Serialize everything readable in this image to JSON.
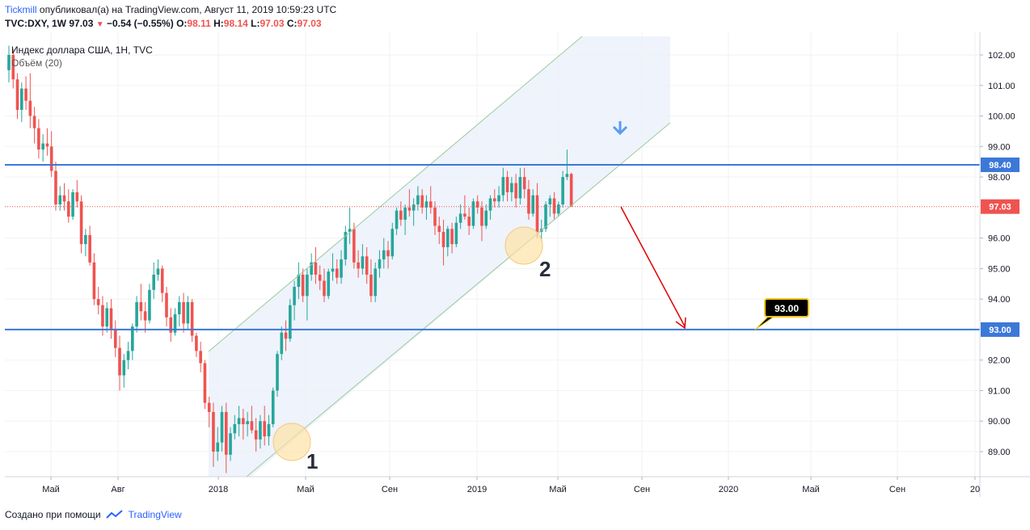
{
  "header": {
    "author": "Tickmill",
    "published": "опубликовал(а) на TradingView.com, Август 11, 2019 10:59:23 UTC",
    "symbol": "TVC:DXY, 1W",
    "last": "97.03",
    "change": "−0.54 (−0.55%)",
    "o_label": "O:",
    "o": "98.11",
    "h_label": "H:",
    "h": "98.14",
    "l_label": "L:",
    "l": "97.03",
    "c_label": "C:",
    "c": "97.03"
  },
  "legend": {
    "title": "Индекс доллара США, 1Н, TVC",
    "volume": "Объём (20)"
  },
  "footer": {
    "created_with": "Создано при помощи",
    "brand": "TradingView"
  },
  "colors": {
    "up": "#26a69a",
    "down": "#ef5350",
    "level_line": "#3c78d8",
    "channel_line": "#9ccc9c",
    "channel_fill": "#eef3fc",
    "arrow": "#e00000",
    "circle": "#ffe0a0",
    "blue_arrow": "#5b9cf0"
  },
  "chart_data": {
    "type": "candlestick",
    "title": "Индекс доллара США, 1Н, TVC",
    "ylim": [
      88.2,
      102.7
    ],
    "y_ticks": [
      {
        "value": 102,
        "label": "102.00"
      },
      {
        "value": 101,
        "label": "101.00"
      },
      {
        "value": 100,
        "label": "100.00"
      },
      {
        "value": 99,
        "label": "99.00"
      },
      {
        "value": 98,
        "label": "98.00"
      },
      {
        "value": 96,
        "label": "96.00"
      },
      {
        "value": 95,
        "label": "95.00"
      },
      {
        "value": 94,
        "label": "94.00"
      },
      {
        "value": 92,
        "label": "92.00"
      },
      {
        "value": 91,
        "label": "91.00"
      },
      {
        "value": 90,
        "label": "90.00"
      },
      {
        "value": 89,
        "label": "89.00"
      }
    ],
    "x_ticks": [
      "Май",
      "Авг",
      "2018",
      "Май",
      "Сен",
      "2019",
      "Май",
      "Сен",
      "2020",
      "Май",
      "Сен",
      "20"
    ],
    "levels": [
      {
        "value": 98.4,
        "label": "98.40"
      },
      {
        "value": 93.0,
        "label": "93.00"
      }
    ],
    "last_price": {
      "value": 97.03,
      "label": "97.03"
    },
    "target_label": "93.00",
    "point_labels": [
      "1",
      "2"
    ],
    "candles": [
      [
        101.5,
        102.3,
        101.1,
        102.0
      ],
      [
        102.0,
        102.2,
        100.9,
        101.2
      ],
      [
        101.2,
        101.4,
        99.9,
        100.2
      ],
      [
        100.2,
        101.1,
        99.8,
        100.9
      ],
      [
        100.9,
        101.3,
        100.2,
        100.5
      ],
      [
        100.5,
        101.4,
        99.6,
        100.0
      ],
      [
        100.0,
        100.3,
        99.1,
        99.6
      ],
      [
        99.6,
        99.9,
        98.6,
        98.9
      ],
      [
        98.9,
        99.4,
        98.5,
        99.1
      ],
      [
        99.1,
        99.6,
        98.7,
        99.0
      ],
      [
        99.0,
        99.5,
        98.0,
        98.2
      ],
      [
        98.2,
        98.5,
        96.9,
        97.1
      ],
      [
        97.1,
        97.7,
        96.9,
        97.4
      ],
      [
        97.4,
        97.8,
        96.9,
        97.2
      ],
      [
        97.2,
        97.6,
        96.5,
        96.7
      ],
      [
        96.7,
        97.6,
        96.6,
        97.5
      ],
      [
        97.5,
        97.9,
        97.0,
        97.2
      ],
      [
        97.2,
        97.4,
        95.5,
        95.8
      ],
      [
        95.8,
        96.3,
        95.4,
        96.1
      ],
      [
        96.1,
        96.4,
        95.1,
        95.2
      ],
      [
        95.2,
        95.5,
        93.8,
        94.0
      ],
      [
        94.0,
        94.4,
        93.5,
        93.8
      ],
      [
        93.8,
        94.1,
        92.8,
        93.1
      ],
      [
        93.1,
        93.9,
        92.9,
        93.7
      ],
      [
        93.7,
        94.0,
        92.7,
        93.0
      ],
      [
        93.0,
        93.3,
        92.1,
        92.4
      ],
      [
        92.4,
        92.8,
        91.0,
        91.5
      ],
      [
        91.5,
        92.2,
        91.1,
        92.0
      ],
      [
        92.0,
        92.6,
        91.7,
        92.3
      ],
      [
        92.3,
        93.2,
        92.0,
        93.1
      ],
      [
        93.1,
        94.1,
        92.9,
        93.9
      ],
      [
        93.9,
        94.5,
        93.3,
        93.6
      ],
      [
        93.6,
        93.9,
        92.9,
        93.3
      ],
      [
        93.3,
        94.5,
        93.2,
        94.3
      ],
      [
        94.3,
        95.2,
        94.0,
        94.8
      ],
      [
        94.8,
        95.3,
        94.6,
        95.0
      ],
      [
        95.0,
        95.1,
        93.9,
        94.2
      ],
      [
        94.2,
        94.4,
        93.1,
        93.4
      ],
      [
        93.4,
        93.7,
        92.6,
        92.9
      ],
      [
        92.9,
        93.7,
        92.8,
        93.5
      ],
      [
        93.5,
        94.1,
        93.1,
        93.9
      ],
      [
        93.9,
        94.2,
        92.9,
        93.2
      ],
      [
        93.2,
        94.1,
        93.0,
        93.9
      ],
      [
        93.9,
        94.0,
        92.6,
        92.8
      ],
      [
        92.8,
        92.9,
        92.1,
        92.3
      ],
      [
        92.3,
        92.6,
        91.6,
        91.9
      ],
      [
        91.9,
        92.0,
        90.4,
        90.6
      ],
      [
        90.6,
        90.8,
        89.8,
        90.3
      ],
      [
        90.3,
        90.6,
        88.5,
        89.0
      ],
      [
        89.0,
        89.8,
        88.7,
        89.3
      ],
      [
        89.3,
        90.5,
        89.0,
        90.3
      ],
      [
        90.3,
        90.6,
        88.3,
        88.9
      ],
      [
        88.9,
        89.8,
        88.7,
        89.6
      ],
      [
        89.6,
        90.2,
        89.4,
        89.9
      ],
      [
        89.9,
        90.5,
        89.5,
        90.1
      ],
      [
        90.1,
        90.4,
        89.4,
        89.9
      ],
      [
        89.9,
        90.3,
        89.5,
        90.0
      ],
      [
        90.0,
        90.5,
        89.6,
        89.7
      ],
      [
        89.7,
        90.1,
        89.0,
        89.4
      ],
      [
        89.4,
        90.2,
        89.1,
        90.0
      ],
      [
        90.0,
        90.5,
        89.2,
        89.5
      ],
      [
        89.5,
        90.2,
        89.2,
        89.9
      ],
      [
        89.9,
        91.1,
        89.8,
        91.0
      ],
      [
        91.0,
        92.3,
        90.8,
        92.2
      ],
      [
        92.2,
        93.1,
        92.0,
        92.9
      ],
      [
        92.9,
        93.3,
        92.3,
        92.7
      ],
      [
        92.7,
        94.0,
        92.6,
        93.8
      ],
      [
        93.8,
        94.6,
        93.3,
        94.4
      ],
      [
        94.4,
        95.2,
        94.0,
        94.8
      ],
      [
        94.8,
        95.0,
        93.9,
        94.1
      ],
      [
        94.1,
        95.0,
        93.3,
        94.8
      ],
      [
        94.8,
        95.5,
        94.6,
        95.2
      ],
      [
        95.2,
        95.7,
        94.5,
        94.8
      ],
      [
        94.8,
        95.1,
        94.3,
        94.6
      ],
      [
        94.6,
        95.0,
        93.9,
        94.1
      ],
      [
        94.1,
        95.0,
        94.0,
        94.9
      ],
      [
        94.9,
        95.5,
        94.6,
        95.0
      ],
      [
        95.0,
        95.3,
        94.5,
        94.7
      ],
      [
        94.7,
        95.6,
        94.5,
        95.3
      ],
      [
        95.3,
        96.4,
        95.1,
        96.2
      ],
      [
        96.2,
        97.0,
        95.8,
        96.3
      ],
      [
        96.3,
        96.5,
        95.0,
        95.2
      ],
      [
        95.2,
        95.6,
        94.7,
        95.0
      ],
      [
        95.0,
        95.8,
        94.8,
        95.4
      ],
      [
        95.4,
        95.7,
        94.5,
        94.8
      ],
      [
        94.8,
        95.3,
        93.9,
        94.1
      ],
      [
        94.1,
        95.2,
        93.9,
        95.0
      ],
      [
        95.0,
        95.6,
        94.7,
        95.3
      ],
      [
        95.3,
        96.0,
        95.0,
        95.6
      ],
      [
        95.6,
        95.9,
        95.0,
        95.4
      ],
      [
        95.4,
        96.5,
        95.3,
        96.3
      ],
      [
        96.3,
        97.0,
        96.1,
        96.9
      ],
      [
        96.9,
        97.2,
        96.4,
        96.6
      ],
      [
        96.6,
        97.1,
        96.1,
        97.0
      ],
      [
        97.0,
        97.6,
        96.7,
        96.9
      ],
      [
        96.9,
        97.3,
        96.4,
        97.1
      ],
      [
        97.1,
        97.7,
        96.9,
        97.4
      ],
      [
        97.4,
        97.6,
        96.8,
        97.0
      ],
      [
        97.0,
        97.4,
        96.6,
        97.2
      ],
      [
        97.2,
        97.7,
        96.8,
        97.0
      ],
      [
        97.0,
        97.2,
        96.1,
        96.4
      ],
      [
        96.4,
        96.7,
        95.8,
        96.2
      ],
      [
        96.2,
        96.6,
        95.1,
        95.7
      ],
      [
        95.7,
        96.4,
        95.4,
        96.3
      ],
      [
        96.3,
        96.5,
        95.5,
        95.8
      ],
      [
        95.8,
        96.7,
        95.7,
        96.5
      ],
      [
        96.5,
        97.1,
        96.3,
        96.8
      ],
      [
        96.8,
        97.4,
        96.6,
        96.7
      ],
      [
        96.7,
        97.0,
        96.1,
        96.4
      ],
      [
        96.4,
        97.3,
        96.3,
        97.2
      ],
      [
        97.2,
        97.4,
        96.8,
        97.0
      ],
      [
        97.0,
        97.2,
        95.9,
        96.4
      ],
      [
        96.4,
        97.1,
        96.3,
        96.9
      ],
      [
        96.9,
        97.4,
        96.6,
        97.3
      ],
      [
        97.3,
        97.6,
        97.0,
        97.2
      ],
      [
        97.2,
        97.7,
        97.0,
        97.4
      ],
      [
        97.4,
        98.3,
        97.2,
        98.0
      ],
      [
        98.0,
        98.2,
        97.2,
        97.5
      ],
      [
        97.5,
        98.0,
        97.2,
        97.8
      ],
      [
        97.8,
        98.1,
        97.0,
        97.3
      ],
      [
        97.3,
        98.3,
        97.1,
        98.0
      ],
      [
        98.0,
        98.3,
        97.3,
        97.6
      ],
      [
        97.6,
        97.9,
        96.6,
        96.8
      ],
      [
        96.8,
        97.6,
        96.7,
        97.4
      ],
      [
        97.4,
        97.8,
        96.0,
        96.2
      ],
      [
        96.2,
        96.6,
        95.9,
        96.3
      ],
      [
        96.3,
        97.2,
        96.2,
        97.1
      ],
      [
        97.1,
        97.4,
        96.7,
        97.3
      ],
      [
        97.3,
        97.5,
        96.6,
        96.8
      ],
      [
        96.8,
        97.2,
        96.7,
        97.1
      ],
      [
        97.1,
        98.2,
        97.0,
        98.0
      ],
      [
        98.0,
        98.9,
        97.9,
        98.1
      ],
      [
        98.1,
        98.14,
        97.03,
        97.03
      ]
    ]
  }
}
